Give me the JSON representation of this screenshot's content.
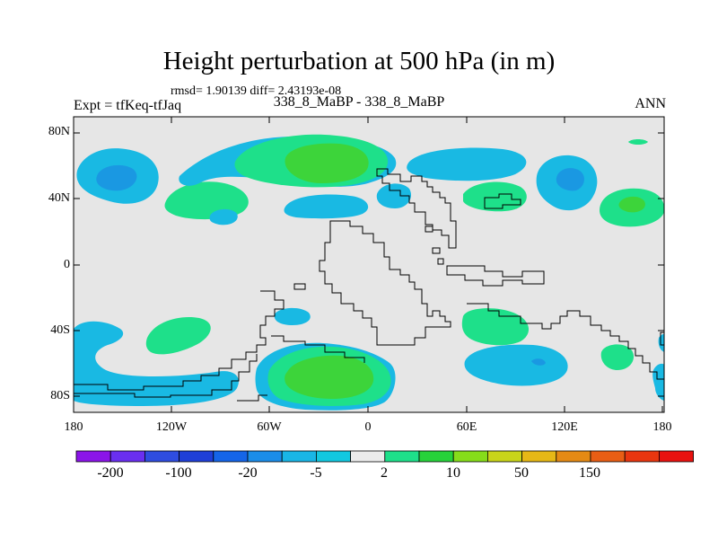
{
  "title": "Height perturbation at 500 hPa (in m)",
  "stats": "rmsd= 1.90139 diff= 2.43193e-08",
  "left_label": "Expt = tfKeq-tfJaq",
  "center_label": "338_8_MaBP - 338_8_MaBP",
  "right_label": "ANN",
  "lat_ticks": [
    "80N",
    "40N",
    "0",
    "40S",
    "80S"
  ],
  "lon_ticks": [
    "180",
    "120W",
    "60W",
    "0",
    "60E",
    "120E",
    "180"
  ],
  "colorbar": {
    "colors": [
      "#8b15e8",
      "#6a2ff0",
      "#2f4de0",
      "#1f3fd8",
      "#1565e8",
      "#1b8de8",
      "#19b6e6",
      "#12c8e0",
      "#ececec",
      "#1ee08a",
      "#27d23a",
      "#86dc1a",
      "#c9d41a",
      "#e6b816",
      "#e58a14",
      "#e85e14",
      "#e8360f",
      "#e8120f"
    ],
    "tick_labels": [
      "-200",
      "-100",
      "-20",
      "-5",
      "2",
      "10",
      "50",
      "150"
    ]
  },
  "map": {
    "land_color": "#e6e6e6",
    "colors": {
      "light_blue": "#19b9e3",
      "mid_blue": "#1a98e2",
      "light_green": "#1ee08a",
      "bright_green": "#3dd43a"
    }
  }
}
